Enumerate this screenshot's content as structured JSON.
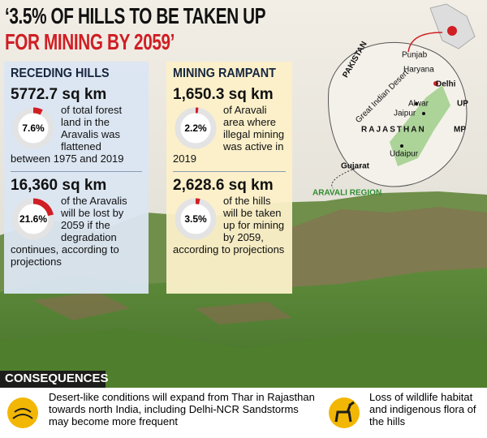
{
  "header": {
    "title_line1": "‘3.5% OF HILLS TO BE TAKEN UP",
    "title_line2": "FOR MINING BY 2059’"
  },
  "panels": [
    {
      "heading": "RECEDING HILLS",
      "stats": [
        {
          "figure": "5772.7 sq km",
          "share": {
            "value": 7.6,
            "label": "7.6%"
          },
          "text": "of total forest land in the Aravalis was flattened between 1975 and 2019"
        },
        {
          "figure": "16,360 sq km",
          "share": {
            "value": 21.6,
            "label": "21.6%"
          },
          "text": "of the Aravalis will be lost by 2059 if the degradation continues, according to projections"
        }
      ]
    },
    {
      "heading": "MINING RAMPANT",
      "stats": [
        {
          "figure": "1,650.3 sq km",
          "share": {
            "value": 2.2,
            "label": "2.2%"
          },
          "text": "of Aravali area where illegal mining was active in 2019"
        },
        {
          "figure": "2,628.6 sq km",
          "share": {
            "value": 3.5,
            "label": "3.5%"
          },
          "text": "of the hills will be taken up for mining by 2059, according to projections"
        }
      ]
    }
  ],
  "map": {
    "labels": [
      "PAKISTAN",
      "Punjab",
      "Haryana",
      "Delhi",
      "Great Indian Desert",
      "Alwar",
      "Jaipur",
      "UP",
      "RAJASTHAN",
      "MP",
      "Udaipur",
      "Gujarat"
    ],
    "legend": "ARAVALI REGION"
  },
  "consequences": {
    "heading": "CONSEQUENCES",
    "items": [
      "Desert-like conditions will expand from Thar in Rajasthan towards north India, including Delhi-NCR Sandstorms may become more frequent",
      "Loss of wildlife habitat and indigenous flora of the hills"
    ]
  }
}
